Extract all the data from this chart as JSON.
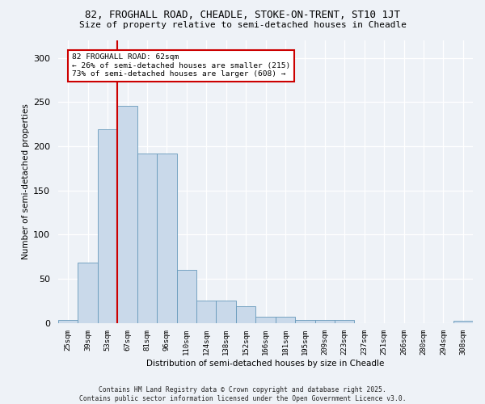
{
  "title1": "82, FROGHALL ROAD, CHEADLE, STOKE-ON-TRENT, ST10 1JT",
  "title2": "Size of property relative to semi-detached houses in Cheadle",
  "xlabel": "Distribution of semi-detached houses by size in Cheadle",
  "ylabel": "Number of semi-detached properties",
  "bar_labels": [
    "25sqm",
    "39sqm",
    "53sqm",
    "67sqm",
    "81sqm",
    "96sqm",
    "110sqm",
    "124sqm",
    "138sqm",
    "152sqm",
    "166sqm",
    "181sqm",
    "195sqm",
    "209sqm",
    "223sqm",
    "237sqm",
    "251sqm",
    "266sqm",
    "280sqm",
    "294sqm",
    "308sqm"
  ],
  "bar_values": [
    3,
    68,
    219,
    246,
    192,
    192,
    60,
    25,
    25,
    19,
    7,
    7,
    3,
    3,
    3,
    0,
    0,
    0,
    0,
    0,
    2
  ],
  "bar_color": "#c9d9ea",
  "bar_edge_color": "#6699bb",
  "vline_color": "#cc0000",
  "vline_x_idx": 2.5,
  "annotation_text": "82 FROGHALL ROAD: 62sqm\n← 26% of semi-detached houses are smaller (215)\n73% of semi-detached houses are larger (608) →",
  "annotation_box_color": "white",
  "annotation_box_edge": "#cc0000",
  "ylim": [
    0,
    320
  ],
  "yticks": [
    0,
    50,
    100,
    150,
    200,
    250,
    300
  ],
  "bg_color": "#eef2f7",
  "plot_bg_color": "#eef2f7",
  "footer": "Contains HM Land Registry data © Crown copyright and database right 2025.\nContains public sector information licensed under the Open Government Licence v3.0."
}
